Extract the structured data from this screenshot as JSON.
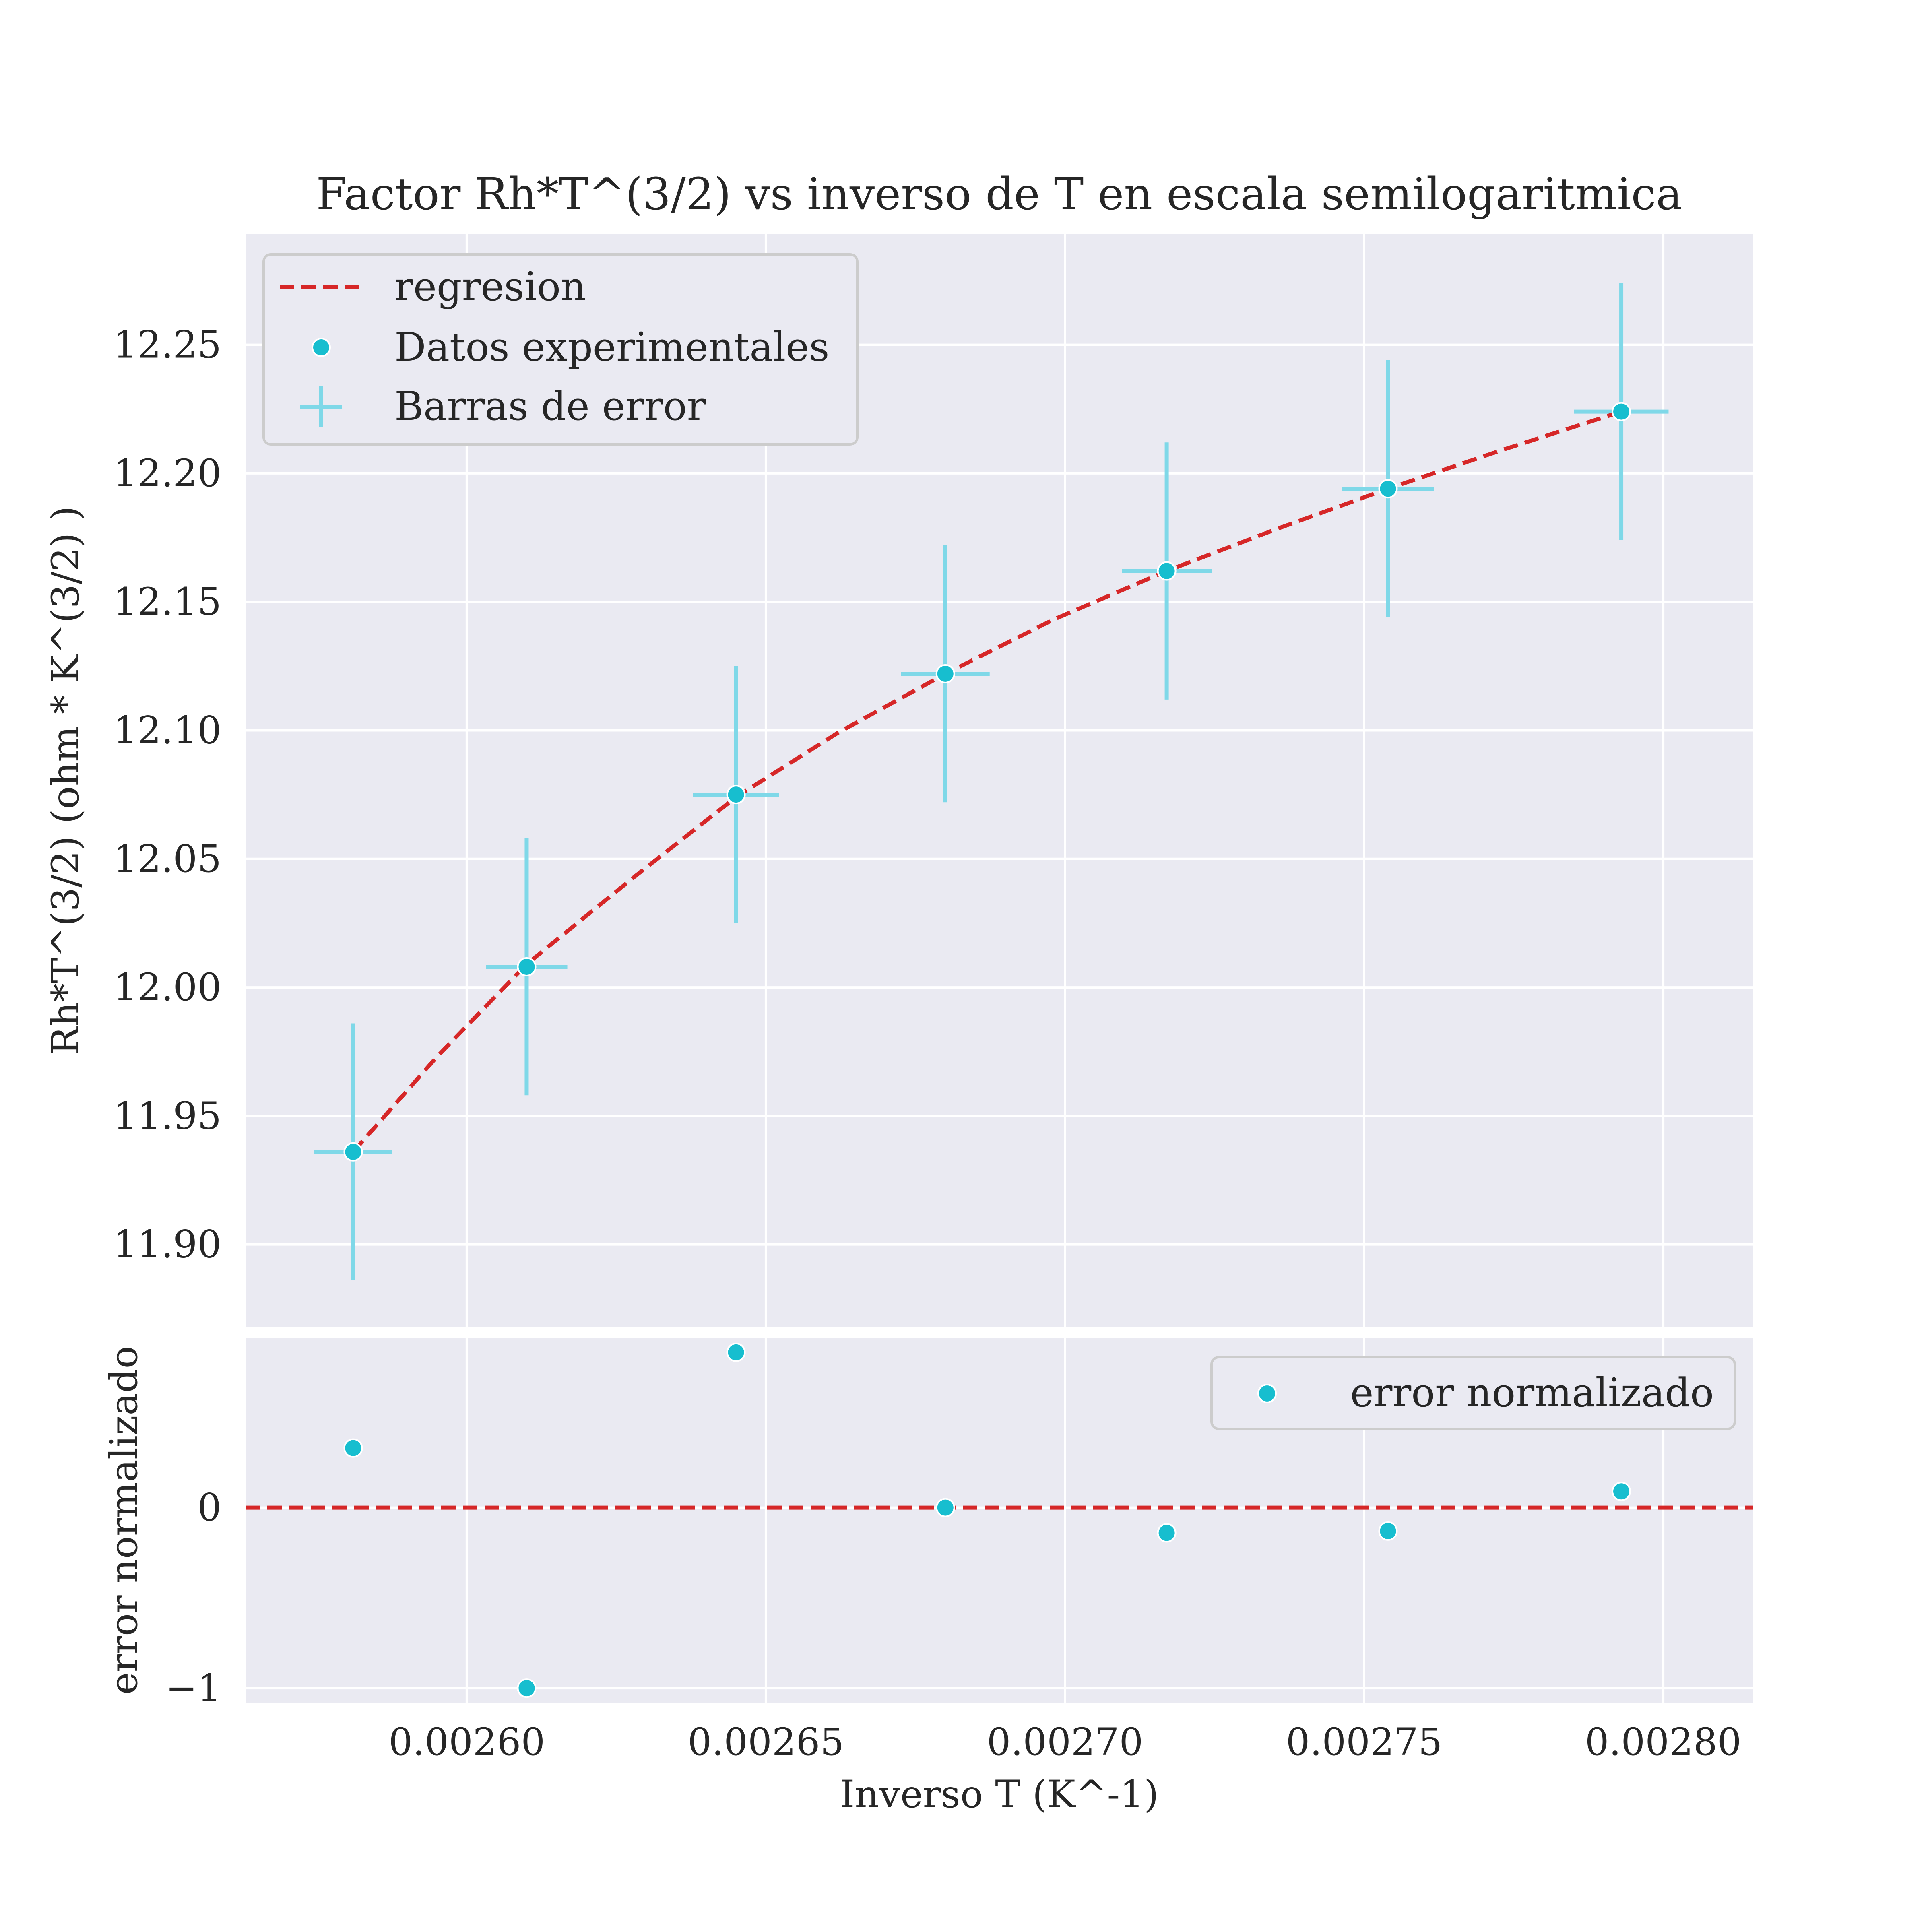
{
  "chart_data": [
    {
      "type": "scatter",
      "title": "Factor Rh*T^(3/2) vs inverso de T en escala semilogaritmica",
      "xlabel": "",
      "ylabel": "Rh*T^(3/2) (ohm * K^(3/2) )",
      "xlim": [
        0.002563,
        0.002815
      ],
      "ylim": [
        11.868,
        12.293
      ],
      "xticks": [
        "0.00260",
        "0.00265",
        "0.00270",
        "0.00275",
        "0.00280"
      ],
      "xtick_values": [
        0.0026,
        0.00265,
        0.0027,
        0.00275,
        0.0028
      ],
      "yticks": [
        "11.90",
        "11.95",
        "12.00",
        "12.05",
        "12.10",
        "12.15",
        "12.20",
        "12.25"
      ],
      "ytick_values": [
        11.9,
        11.95,
        12.0,
        12.05,
        12.1,
        12.15,
        12.2,
        12.25
      ],
      "grid": true,
      "legend_position": "top-left",
      "legend": [
        "regresion",
        "Datos experimentales",
        "Barras de error"
      ],
      "series": [
        {
          "name": "Datos experimentales",
          "x": [
            0.002581,
            0.00261,
            0.002645,
            0.00268,
            0.002717,
            0.002754,
            0.002793
          ],
          "y": [
            11.936,
            12.008,
            12.075,
            12.122,
            12.162,
            12.194,
            12.224
          ],
          "yerr": [
            0.05,
            0.05,
            0.05,
            0.05,
            0.05,
            0.05,
            0.05
          ],
          "xerr": [
            6.5e-06,
            6.8e-06,
            7.2e-06,
            7.4e-06,
            7.5e-06,
            7.7e-06,
            7.9e-06
          ],
          "color": "#17becf"
        },
        {
          "name": "regresion",
          "type": "line",
          "style": "dashed",
          "x": [
            0.002581,
            0.002595,
            0.00261,
            0.002628,
            0.002645,
            0.002662,
            0.00268,
            0.002698,
            0.002717,
            0.002735,
            0.002754,
            0.002773,
            0.002793
          ],
          "y": [
            11.936,
            11.973,
            12.009,
            12.043,
            12.074,
            12.099,
            12.122,
            12.143,
            12.162,
            12.178,
            12.194,
            12.209,
            12.224
          ],
          "color": "#d62728"
        }
      ]
    },
    {
      "type": "scatter",
      "title": "",
      "xlabel": "Inverso T (K^-1)",
      "ylabel": "error normalizado",
      "xlim": [
        0.002563,
        0.002815
      ],
      "ylim": [
        -1.08,
        0.94
      ],
      "xticks": [
        "0.00260",
        "0.00265",
        "0.00270",
        "0.00275",
        "0.00280"
      ],
      "xtick_values": [
        0.0026,
        0.00265,
        0.0027,
        0.00275,
        0.0028
      ],
      "yticks": [
        "−1",
        "0"
      ],
      "ytick_values": [
        -1,
        0
      ],
      "grid": true,
      "legend_position": "top-right",
      "legend": [
        "error normalizado"
      ],
      "series": [
        {
          "name": "error normalizado",
          "x": [
            0.002581,
            0.00261,
            0.002645,
            0.00268,
            0.002717,
            0.002754,
            0.002793
          ],
          "y": [
            0.33,
            -1.0,
            0.86,
            0.0,
            -0.14,
            -0.13,
            0.09
          ],
          "color": "#17becf"
        }
      ],
      "reference_line": {
        "y": 0,
        "style": "dashed",
        "color": "#d62728"
      }
    }
  ],
  "colors": {
    "axes_background": "#eaeaf2",
    "grid": "#ffffff",
    "point": "#17becf",
    "errorbar": "#7fd8e8",
    "regression": "#d62728"
  }
}
